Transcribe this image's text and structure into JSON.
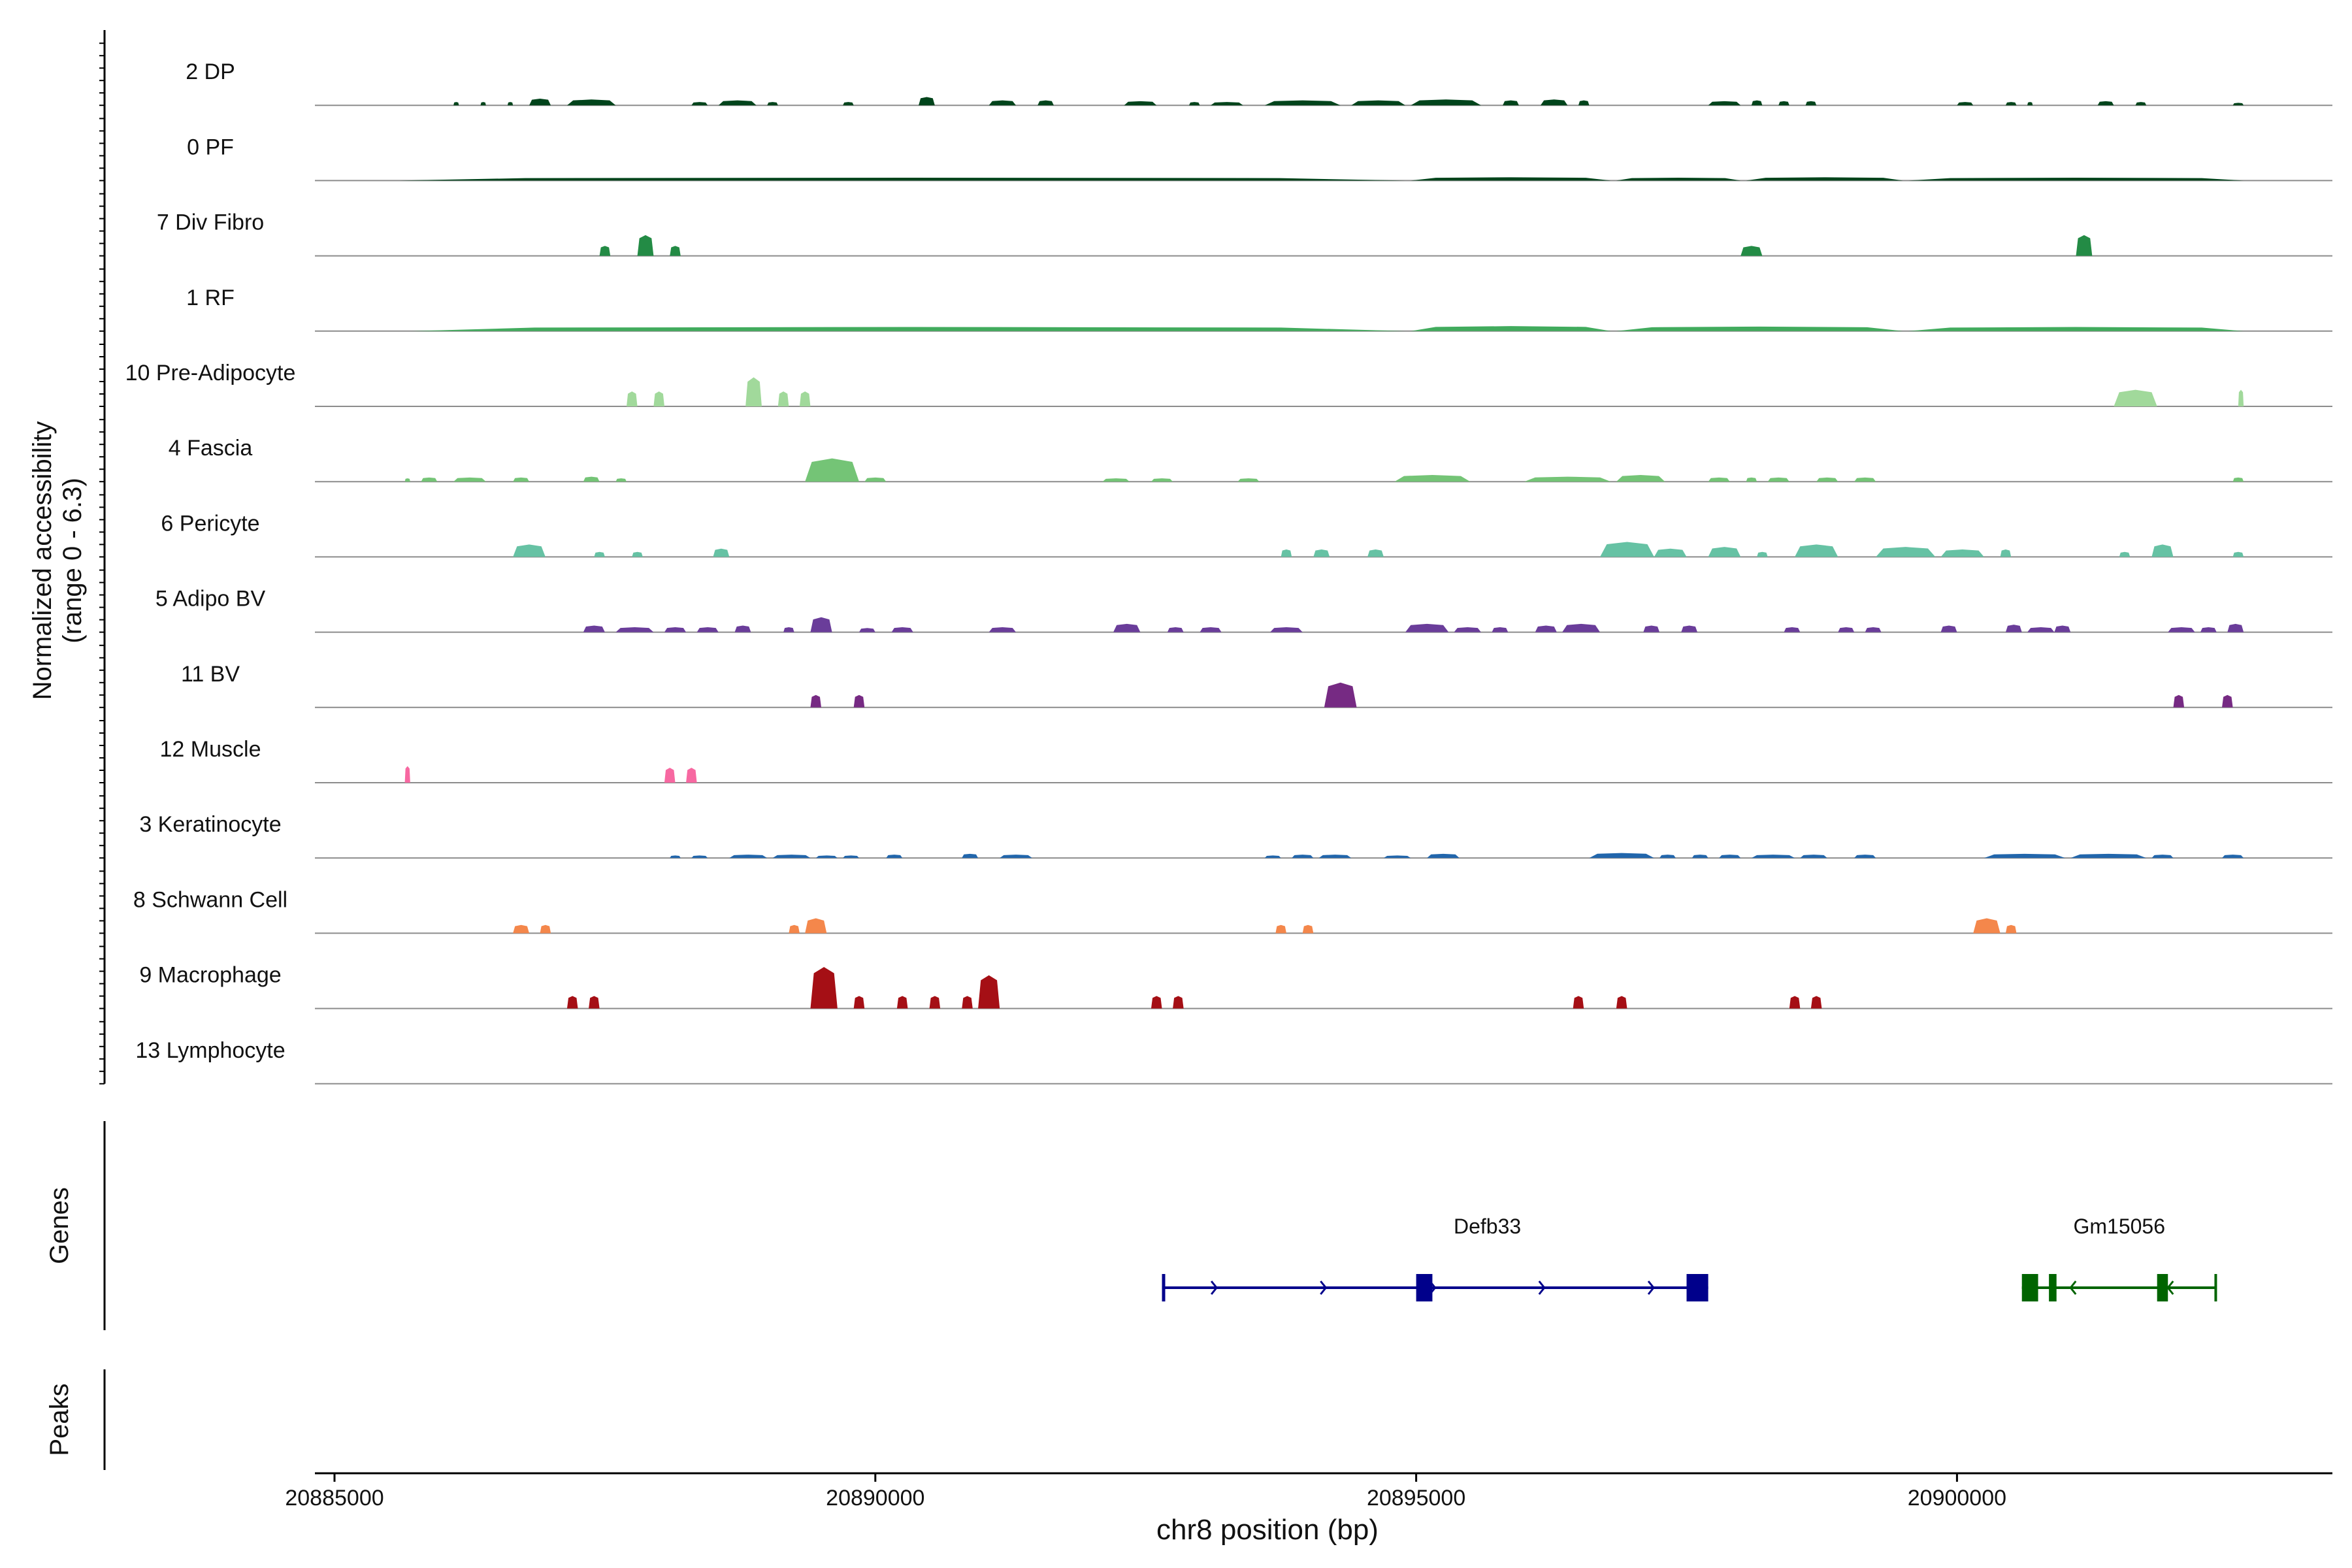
{
  "chart_data": {
    "type": "area",
    "title": "",
    "xlabel": "chr8 position (bp)",
    "ylabel_line1": "Normalized accessibility",
    "ylabel_line2": "(range 0 - 6.3)",
    "xlim": [
      20884800,
      20903800
    ],
    "ylim": [
      0,
      6.3
    ],
    "xticks": [
      {
        "value": 20885000,
        "label": "20885000"
      },
      {
        "value": 20890000,
        "label": "20890000"
      },
      {
        "value": 20895000,
        "label": "20895000"
      },
      {
        "value": 20900000,
        "label": "20900000"
      }
    ],
    "tracks_section_label": "Genes",
    "peaks_section_label": "Peaks",
    "series": [
      {
        "name": "2 DP",
        "color": "#00441b",
        "peaks": [
          [
            20886100,
            20886150,
            0.4
          ],
          [
            20886350,
            20886400,
            0.4
          ],
          [
            20886600,
            20886650,
            0.4
          ],
          [
            20886800,
            20887000,
            0.8
          ],
          [
            20887150,
            20887600,
            0.7
          ],
          [
            20888300,
            20888450,
            0.4
          ],
          [
            20888550,
            20888900,
            0.6
          ],
          [
            20889000,
            20889100,
            0.4
          ],
          [
            20889700,
            20889800,
            0.4
          ],
          [
            20890400,
            20890550,
            1.0
          ],
          [
            20891050,
            20891300,
            0.6
          ],
          [
            20891500,
            20891650,
            0.6
          ],
          [
            20892300,
            20892600,
            0.5
          ],
          [
            20892900,
            20893000,
            0.4
          ],
          [
            20893100,
            20893400,
            0.4
          ],
          [
            20893600,
            20894300,
            0.6
          ],
          [
            20894400,
            20894900,
            0.6
          ],
          [
            20894950,
            20895600,
            0.7
          ],
          [
            20895800,
            20895950,
            0.6
          ],
          [
            20896150,
            20896400,
            0.7
          ],
          [
            20896500,
            20896600,
            0.6
          ],
          [
            20897700,
            20898000,
            0.5
          ],
          [
            20898100,
            20898200,
            0.6
          ],
          [
            20898350,
            20898450,
            0.5
          ],
          [
            20898600,
            20898700,
            0.5
          ],
          [
            20900000,
            20900150,
            0.4
          ],
          [
            20900450,
            20900550,
            0.4
          ],
          [
            20900650,
            20900700,
            0.4
          ],
          [
            20901300,
            20901450,
            0.5
          ],
          [
            20901650,
            20901750,
            0.4
          ],
          [
            20902550,
            20902650,
            0.3
          ]
        ]
      },
      {
        "name": "0 PF",
        "color": "#00441b",
        "peaks": [
          [
            20885600,
            20894900,
            0.35
          ],
          [
            20894950,
            20896800,
            0.4
          ],
          [
            20896850,
            20898000,
            0.35
          ],
          [
            20898050,
            20899500,
            0.4
          ],
          [
            20899550,
            20902650,
            0.35
          ]
        ]
      },
      {
        "name": "7 Div Fibro",
        "color": "#238b45",
        "peaks": [
          [
            20887450,
            20887550,
            1.2
          ],
          [
            20887800,
            20887950,
            2.5
          ],
          [
            20888100,
            20888200,
            1.2
          ],
          [
            20898000,
            20898200,
            1.2
          ],
          [
            20901100,
            20901250,
            2.5
          ]
        ]
      },
      {
        "name": "1 RF",
        "color": "#41ab5d",
        "peaks": [
          [
            20885700,
            20894900,
            0.5
          ],
          [
            20894950,
            20896800,
            0.6
          ],
          [
            20896850,
            20899500,
            0.55
          ],
          [
            20899550,
            20902650,
            0.5
          ]
        ]
      },
      {
        "name": "10 Pre-Adipocyte",
        "color": "#a1d99b",
        "peaks": [
          [
            20887700,
            20887800,
            1.8
          ],
          [
            20887950,
            20888050,
            1.8
          ],
          [
            20888800,
            20888950,
            3.5
          ],
          [
            20889100,
            20889200,
            1.8
          ],
          [
            20889300,
            20889400,
            1.8
          ],
          [
            20901450,
            20901850,
            2.0
          ],
          [
            20902600,
            20902650,
            2.0
          ]
        ]
      },
      {
        "name": "4 Fascia",
        "color": "#74c476",
        "peaks": [
          [
            20885650,
            20885700,
            0.4
          ],
          [
            20885800,
            20885950,
            0.5
          ],
          [
            20886100,
            20886400,
            0.5
          ],
          [
            20886650,
            20886800,
            0.5
          ],
          [
            20887300,
            20887450,
            0.6
          ],
          [
            20887600,
            20887700,
            0.4
          ],
          [
            20889350,
            20889850,
            2.8
          ],
          [
            20889900,
            20890100,
            0.5
          ],
          [
            20892100,
            20892350,
            0.4
          ],
          [
            20892550,
            20892750,
            0.4
          ],
          [
            20893350,
            20893550,
            0.4
          ],
          [
            20894800,
            20895500,
            0.8
          ],
          [
            20896000,
            20896800,
            0.6
          ],
          [
            20896850,
            20897300,
            0.8
          ],
          [
            20897700,
            20897900,
            0.5
          ],
          [
            20898050,
            20898150,
            0.5
          ],
          [
            20898250,
            20898450,
            0.5
          ],
          [
            20898700,
            20898900,
            0.5
          ],
          [
            20899050,
            20899250,
            0.5
          ],
          [
            20902550,
            20902650,
            0.5
          ]
        ]
      },
      {
        "name": "6 Pericyte",
        "color": "#66c2a4",
        "peaks": [
          [
            20886650,
            20886950,
            1.5
          ],
          [
            20887400,
            20887500,
            0.6
          ],
          [
            20887750,
            20887850,
            0.6
          ],
          [
            20888500,
            20888650,
            1.0
          ],
          [
            20893750,
            20893850,
            0.9
          ],
          [
            20894050,
            20894200,
            0.9
          ],
          [
            20894550,
            20894700,
            0.9
          ],
          [
            20896700,
            20897200,
            1.8
          ],
          [
            20897200,
            20897500,
            1.0
          ],
          [
            20897700,
            20898000,
            1.2
          ],
          [
            20898150,
            20898250,
            0.6
          ],
          [
            20898500,
            20898900,
            1.5
          ],
          [
            20899250,
            20899800,
            1.2
          ],
          [
            20899850,
            20900250,
            0.9
          ],
          [
            20900400,
            20900500,
            0.9
          ],
          [
            20901500,
            20901600,
            0.6
          ],
          [
            20901800,
            20902000,
            1.5
          ],
          [
            20902550,
            20902650,
            0.6
          ]
        ]
      },
      {
        "name": "5 Adipo BV",
        "color": "#6a3d9a",
        "peaks": [
          [
            20887300,
            20887500,
            0.8
          ],
          [
            20887600,
            20887950,
            0.6
          ],
          [
            20888050,
            20888250,
            0.6
          ],
          [
            20888350,
            20888550,
            0.6
          ],
          [
            20888700,
            20888850,
            0.8
          ],
          [
            20889150,
            20889250,
            0.6
          ],
          [
            20889400,
            20889600,
            1.8
          ],
          [
            20889850,
            20890000,
            0.5
          ],
          [
            20890150,
            20890350,
            0.6
          ],
          [
            20891050,
            20891300,
            0.6
          ],
          [
            20892200,
            20892450,
            1.0
          ],
          [
            20892700,
            20892850,
            0.6
          ],
          [
            20893000,
            20893200,
            0.6
          ],
          [
            20893650,
            20893950,
            0.6
          ],
          [
            20894900,
            20895300,
            1.0
          ],
          [
            20895350,
            20895600,
            0.6
          ],
          [
            20895700,
            20895850,
            0.6
          ],
          [
            20896100,
            20896300,
            0.8
          ],
          [
            20896350,
            20896700,
            1.0
          ],
          [
            20897100,
            20897250,
            0.8
          ],
          [
            20897450,
            20897600,
            0.8
          ],
          [
            20898400,
            20898550,
            0.6
          ],
          [
            20898900,
            20899050,
            0.6
          ],
          [
            20899150,
            20899300,
            0.6
          ],
          [
            20899850,
            20900000,
            0.8
          ],
          [
            20900450,
            20900600,
            0.9
          ],
          [
            20900650,
            20900900,
            0.6
          ],
          [
            20900900,
            20901050,
            0.8
          ],
          [
            20901950,
            20902200,
            0.6
          ],
          [
            20902250,
            20902400,
            0.6
          ],
          [
            20902500,
            20902650,
            1.0
          ]
        ]
      },
      {
        "name": "11 BV",
        "color": "#762a83",
        "peaks": [
          [
            20889400,
            20889500,
            1.5
          ],
          [
            20889800,
            20889900,
            1.5
          ],
          [
            20894150,
            20894450,
            3.0
          ],
          [
            20902000,
            20902100,
            1.5
          ],
          [
            20902450,
            20902550,
            1.5
          ]
        ]
      },
      {
        "name": "12 Muscle",
        "color": "#f768a1",
        "peaks": [
          [
            20885650,
            20885700,
            2.0
          ],
          [
            20888050,
            20888150,
            1.8
          ],
          [
            20888250,
            20888350,
            1.8
          ]
        ]
      },
      {
        "name": "3 Keratinocyte",
        "color": "#2166ac",
        "peaks": [
          [
            20888100,
            20888200,
            0.3
          ],
          [
            20888300,
            20888450,
            0.3
          ],
          [
            20888650,
            20889000,
            0.4
          ],
          [
            20889050,
            20889400,
            0.4
          ],
          [
            20889450,
            20889650,
            0.3
          ],
          [
            20889700,
            20889850,
            0.3
          ],
          [
            20890100,
            20890250,
            0.4
          ],
          [
            20890800,
            20890950,
            0.5
          ],
          [
            20891150,
            20891450,
            0.4
          ],
          [
            20893600,
            20893750,
            0.3
          ],
          [
            20893850,
            20894050,
            0.4
          ],
          [
            20894100,
            20894400,
            0.4
          ],
          [
            20894700,
            20894950,
            0.3
          ],
          [
            20895100,
            20895400,
            0.5
          ],
          [
            20896600,
            20897200,
            0.6
          ],
          [
            20897250,
            20897400,
            0.4
          ],
          [
            20897550,
            20897700,
            0.4
          ],
          [
            20897800,
            20898000,
            0.4
          ],
          [
            20898100,
            20898500,
            0.4
          ],
          [
            20898550,
            20898800,
            0.4
          ],
          [
            20899050,
            20899250,
            0.4
          ],
          [
            20900250,
            20901000,
            0.5
          ],
          [
            20901050,
            20901750,
            0.5
          ],
          [
            20901800,
            20902000,
            0.4
          ],
          [
            20902450,
            20902650,
            0.4
          ]
        ]
      },
      {
        "name": "8 Schwann Cell",
        "color": "#f4874b",
        "peaks": [
          [
            20886650,
            20886800,
            1.0
          ],
          [
            20886900,
            20887000,
            1.0
          ],
          [
            20889200,
            20889300,
            1.0
          ],
          [
            20889350,
            20889550,
            1.8
          ],
          [
            20893700,
            20893800,
            1.0
          ],
          [
            20893950,
            20894050,
            1.0
          ],
          [
            20900150,
            20900400,
            1.8
          ],
          [
            20900450,
            20900550,
            1.0
          ]
        ]
      },
      {
        "name": "9 Macrophage",
        "color": "#a50f15",
        "peaks": [
          [
            20887150,
            20887250,
            1.5
          ],
          [
            20887350,
            20887450,
            1.5
          ],
          [
            20889400,
            20889650,
            5.0
          ],
          [
            20889800,
            20889900,
            1.5
          ],
          [
            20890200,
            20890300,
            1.5
          ],
          [
            20890500,
            20890600,
            1.5
          ],
          [
            20890800,
            20890900,
            1.5
          ],
          [
            20890950,
            20891150,
            4.0
          ],
          [
            20892550,
            20892650,
            1.5
          ],
          [
            20892750,
            20892850,
            1.5
          ],
          [
            20896450,
            20896550,
            1.5
          ],
          [
            20896850,
            20896950,
            1.5
          ],
          [
            20898450,
            20898550,
            1.5
          ],
          [
            20898650,
            20898750,
            1.5
          ]
        ]
      },
      {
        "name": "13 Lymphocyte",
        "color": "#999999",
        "peaks": []
      }
    ],
    "genes": [
      {
        "name": "Defb33",
        "color": "#00008b",
        "strand": "+",
        "start": 20892650,
        "end": 20897700,
        "exons": [
          [
            20892650,
            20892680
          ],
          [
            20895000,
            20895150
          ],
          [
            20897500,
            20897700
          ]
        ]
      },
      {
        "name": "Gm15056",
        "color": "#006400",
        "strand": "-",
        "start": 20900600,
        "end": 20902400,
        "exons": [
          [
            20900600,
            20900750
          ],
          [
            20900850,
            20900920
          ],
          [
            20901850,
            20901950
          ],
          [
            20902380,
            20902400
          ]
        ]
      }
    ]
  }
}
